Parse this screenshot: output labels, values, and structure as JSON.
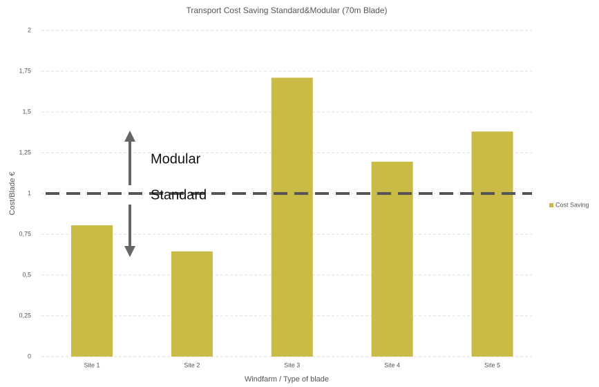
{
  "chart_data": {
    "type": "bar",
    "title": "Transport Cost Saving Standard&Modular (70m Blade)",
    "x_label": "Windfarm / Type of blade",
    "y_label": "Cost/Blade €",
    "categories": [
      "Site 1",
      "Site 2",
      "Site 3",
      "Site 4",
      "Site 5"
    ],
    "series": [
      {
        "name": "Cost Saving",
        "color": "#c9bb45",
        "values": [
          0.805,
          0.645,
          1.71,
          1.195,
          1.38
        ]
      }
    ],
    "ylim": [
      0,
      2
    ],
    "yticks": [
      0,
      {
        "value": 0.25,
        "label": "0,25"
      },
      {
        "value": 0.5,
        "label": "0,5"
      },
      {
        "value": 0.75,
        "label": "0,75"
      },
      1,
      {
        "value": 1.25,
        "label": "1,25"
      },
      {
        "value": 1.5,
        "label": "1,5"
      },
      {
        "value": 1.75,
        "label": "1,75"
      },
      2
    ],
    "grid": true,
    "legend": "right",
    "reference_line": 1,
    "annotations": [
      "Modular",
      "Standard"
    ]
  }
}
